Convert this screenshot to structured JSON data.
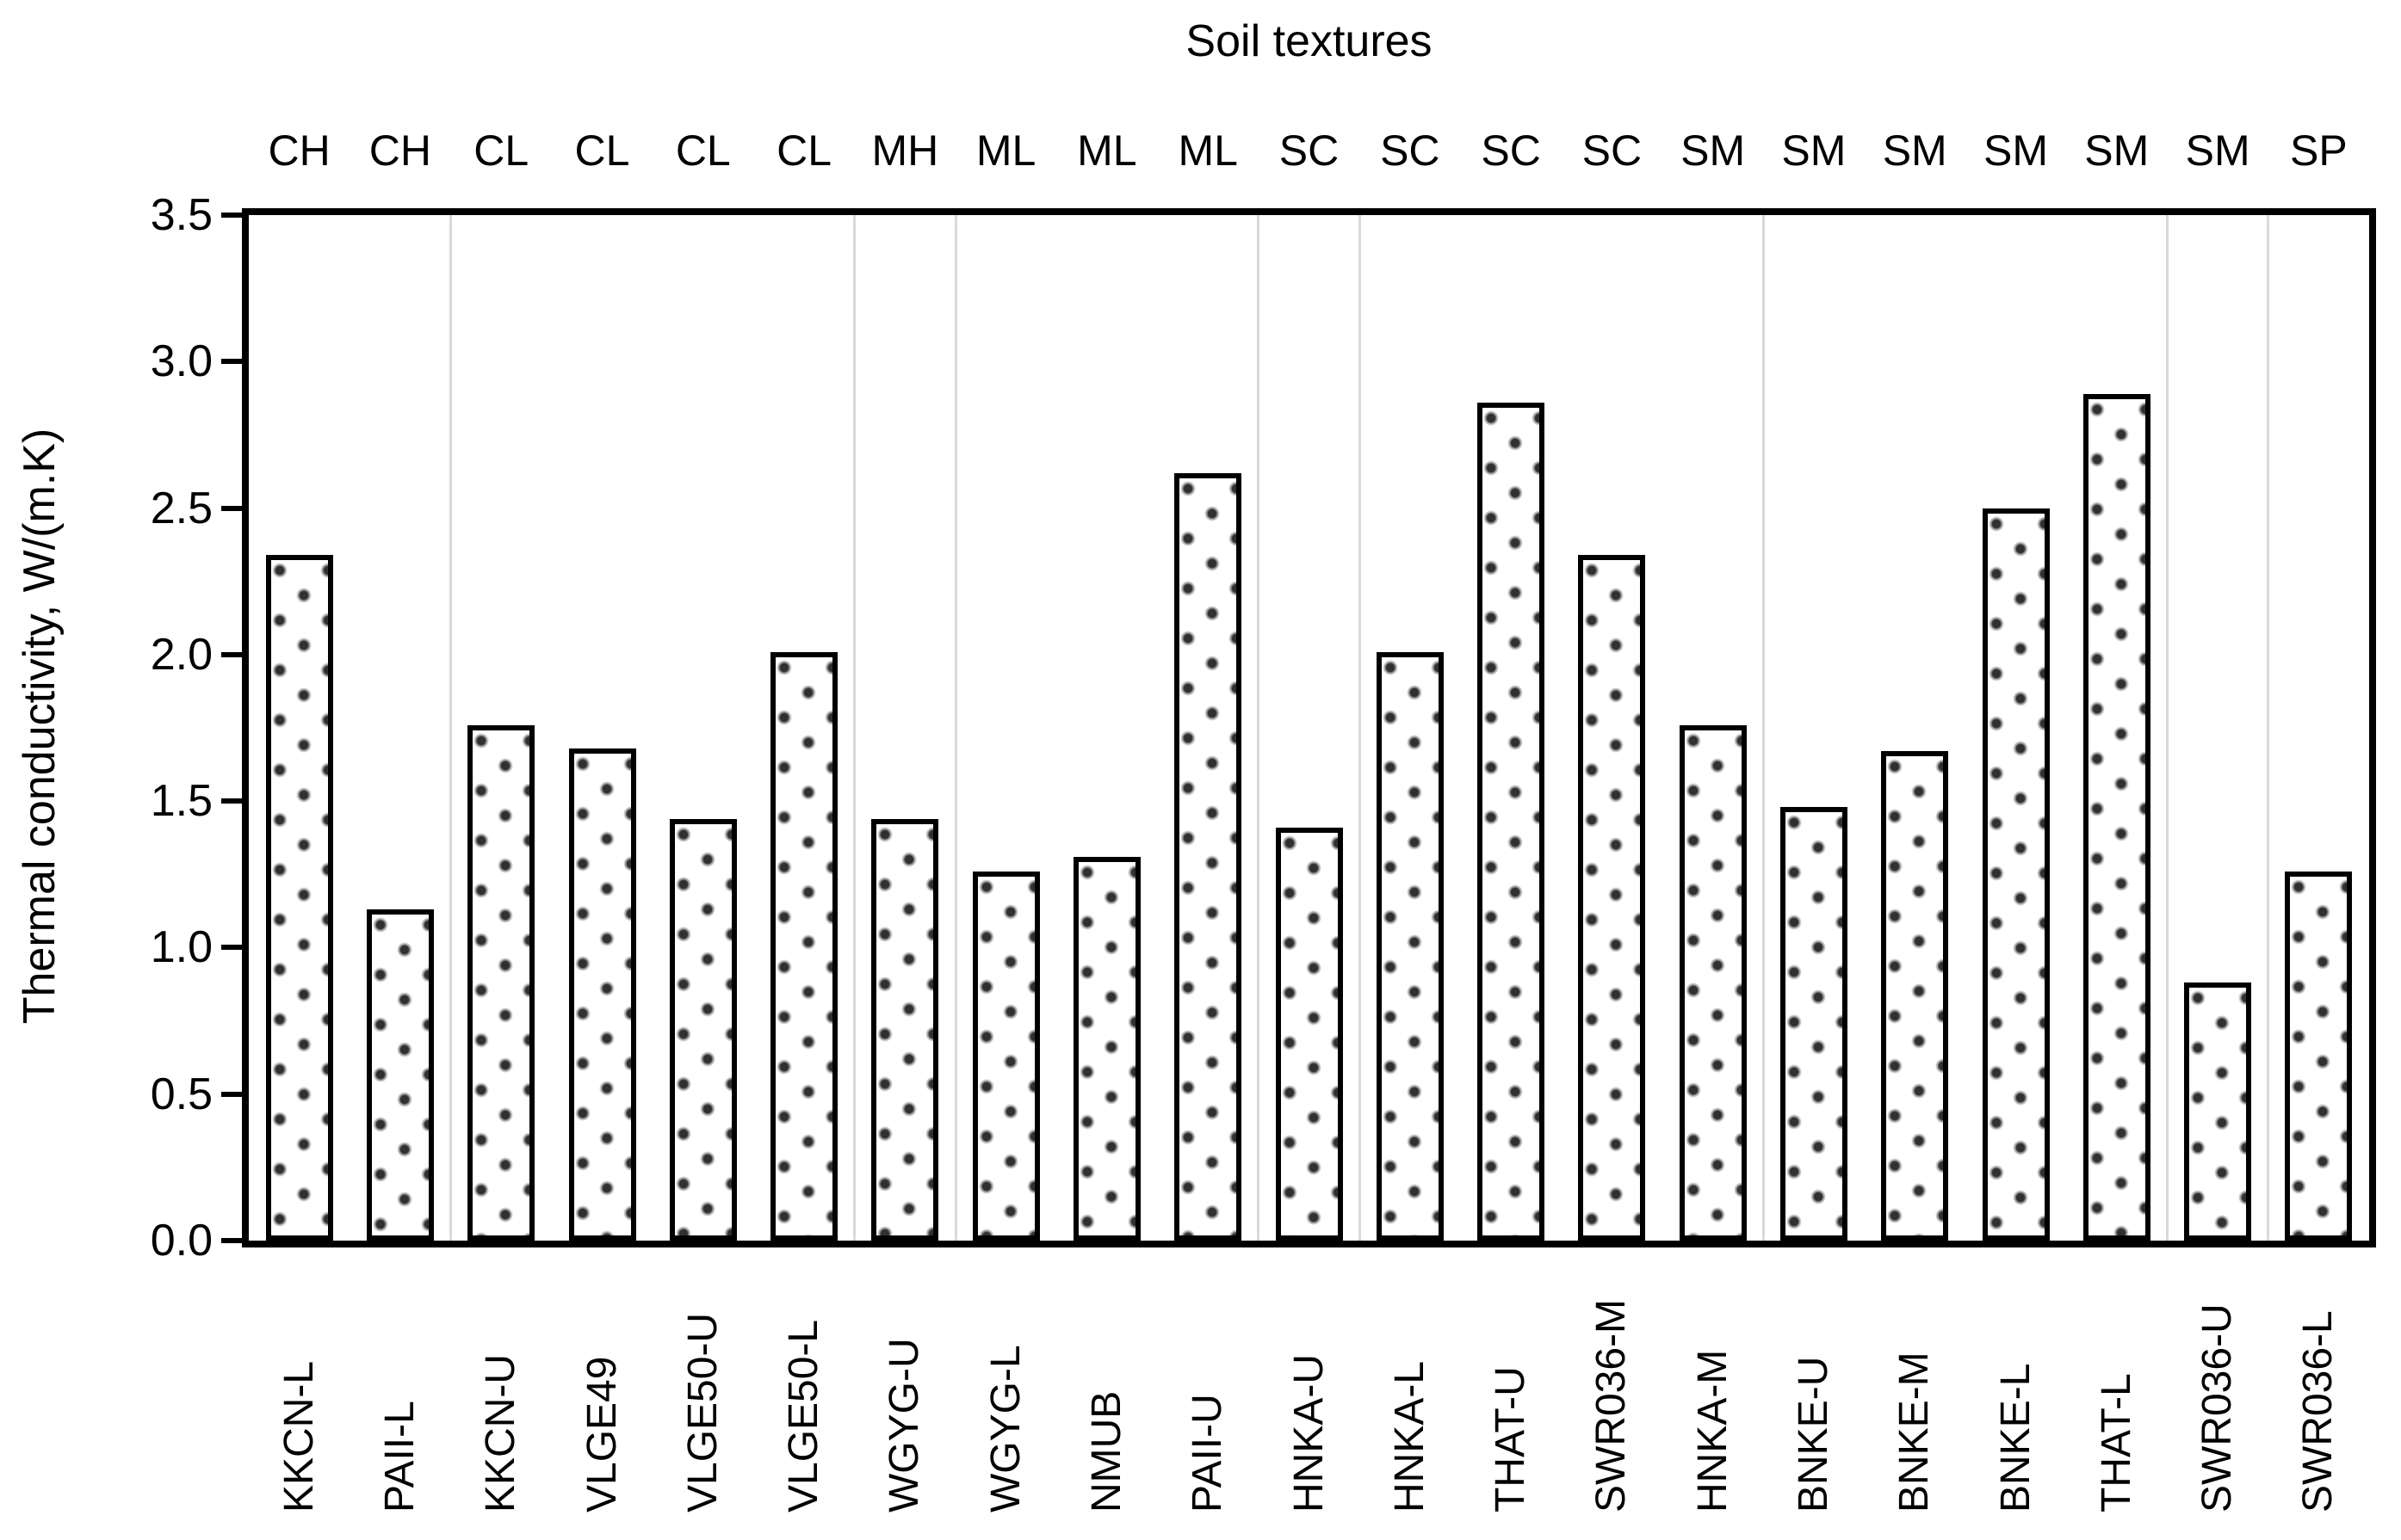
{
  "chart_data": {
    "type": "bar",
    "title": "Soil textures",
    "ylabel": "Thermal conductivity, W/(m.K)",
    "xlabel": "",
    "ylim": [
      0,
      3.5
    ],
    "ytick_step": 0.5,
    "ytick_labels": [
      "3.5",
      "3.0",
      "2.5",
      "2.0",
      "1.5",
      "1.0",
      "0.5",
      "0.0"
    ],
    "grid": "faint vertical category separators only",
    "legend_position": "none",
    "categories": [
      "KKCN-L",
      "PAII-L",
      "KKCN-U",
      "VLGE49",
      "VLGE50-U",
      "VLGE50-L",
      "WGYG-U",
      "WGYG-L",
      "NMUB",
      "PAII-U",
      "HNKA-U",
      "HNKA-L",
      "THAT-U",
      "SWR036-M",
      "HNKA-M",
      "BNKE-U",
      "BNKE-M",
      "BNKE-L",
      "THAT-L",
      "SWR036-U",
      "SWR036-L"
    ],
    "textures": [
      "CH",
      "CH",
      "CL",
      "CL",
      "CL",
      "CL",
      "MH",
      "ML",
      "ML",
      "ML",
      "SC",
      "SC",
      "SC",
      "SC",
      "SM",
      "SM",
      "SM",
      "SM",
      "SM",
      "SM",
      "SP"
    ],
    "values": [
      2.34,
      1.13,
      1.76,
      1.68,
      1.44,
      2.01,
      1.44,
      1.26,
      1.31,
      2.62,
      1.41,
      2.01,
      2.86,
      2.34,
      1.76,
      1.48,
      1.67,
      2.5,
      2.89,
      0.88,
      1.26
    ],
    "separators_after_index": [
      2,
      6,
      7,
      10,
      11,
      15,
      19,
      20
    ],
    "styles": {
      "background": "#ffffff",
      "text_color": "#000000",
      "bar_fill": "#ffffff",
      "bar_dot_color": "#303030",
      "bar_border_color": "#000000",
      "frame_color": "#000000",
      "separator_color": "#d9d9d9"
    }
  }
}
